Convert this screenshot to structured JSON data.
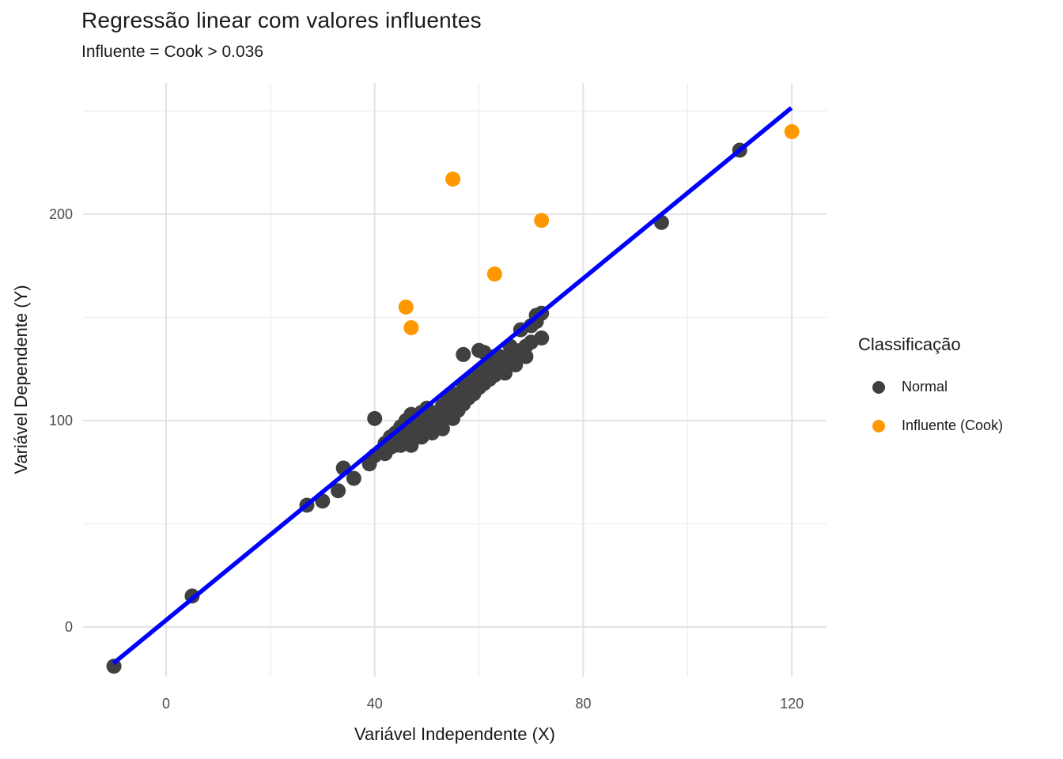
{
  "chart_data": {
    "type": "scatter",
    "title": "Regressão linear com valores influentes",
    "subtitle": "Influente = Cook > 0.036",
    "xlabel": "Variável Independente (X)",
    "ylabel": "Variável Dependente (Y)",
    "x_ticks": [
      0,
      40,
      80,
      120
    ],
    "y_ticks": [
      0,
      100,
      200
    ],
    "x_minor_ticks": [
      20,
      60,
      100
    ],
    "y_minor_ticks": [
      50,
      150,
      250
    ],
    "xlim": [
      -15.9,
      126.7
    ],
    "ylim": [
      -24.2,
      263.6
    ],
    "grid": true,
    "background": "#FFFFFF",
    "tick_label_color": "#4D4D4D",
    "legend": {
      "title": "Classificação",
      "position": "right",
      "entries": [
        {
          "label": "Normal",
          "color": "#404040"
        },
        {
          "label": "Influente (Cook)",
          "color": "#FF9800"
        }
      ]
    },
    "series": [
      {
        "name": "Normal",
        "color": "#404040",
        "point_radius": 9.5,
        "points": [
          [
            -10,
            -19
          ],
          [
            5,
            15
          ],
          [
            27,
            59
          ],
          [
            30,
            61
          ],
          [
            33,
            66
          ],
          [
            34,
            77
          ],
          [
            36,
            72
          ],
          [
            39,
            79
          ],
          [
            40,
            101
          ],
          [
            95,
            196
          ],
          [
            110,
            231
          ],
          [
            72,
            140
          ],
          [
            40,
            83
          ],
          [
            41,
            85
          ],
          [
            42,
            84
          ],
          [
            42,
            89
          ],
          [
            43,
            87
          ],
          [
            43,
            92
          ],
          [
            44,
            88
          ],
          [
            44,
            94
          ],
          [
            45,
            88
          ],
          [
            45,
            92
          ],
          [
            45,
            97
          ],
          [
            46,
            91
          ],
          [
            46,
            100
          ],
          [
            47,
            88
          ],
          [
            47,
            95
          ],
          [
            47,
            103
          ],
          [
            48,
            93
          ],
          [
            48,
            100
          ],
          [
            49,
            92
          ],
          [
            49,
            97
          ],
          [
            49,
            104
          ],
          [
            50,
            98
          ],
          [
            50,
            106
          ],
          [
            51,
            94
          ],
          [
            51,
            100
          ],
          [
            52,
            99
          ],
          [
            52,
            104
          ],
          [
            53,
            96
          ],
          [
            53,
            102
          ],
          [
            53,
            107
          ],
          [
            54,
            104
          ],
          [
            54,
            110
          ],
          [
            55,
            101
          ],
          [
            55,
            107
          ],
          [
            55,
            113
          ],
          [
            56,
            105
          ],
          [
            56,
            110
          ],
          [
            57,
            108
          ],
          [
            57,
            113
          ],
          [
            57,
            118
          ],
          [
            57,
            132
          ],
          [
            58,
            111
          ],
          [
            58,
            116
          ],
          [
            59,
            113
          ],
          [
            59,
            119
          ],
          [
            59,
            122
          ],
          [
            60,
            116
          ],
          [
            60,
            121
          ],
          [
            60,
            134
          ],
          [
            61,
            118
          ],
          [
            61,
            124
          ],
          [
            61,
            133
          ],
          [
            62,
            120
          ],
          [
            62,
            126
          ],
          [
            63,
            122
          ],
          [
            63,
            128
          ],
          [
            63,
            131
          ],
          [
            64,
            125
          ],
          [
            64,
            131
          ],
          [
            65,
            123
          ],
          [
            65,
            128
          ],
          [
            66,
            130
          ],
          [
            66,
            136
          ],
          [
            67,
            127
          ],
          [
            67,
            132
          ],
          [
            68,
            134
          ],
          [
            68,
            144
          ],
          [
            69,
            131
          ],
          [
            69,
            136
          ],
          [
            70,
            138
          ],
          [
            70,
            146
          ],
          [
            71,
            148
          ],
          [
            71,
            151
          ],
          [
            72,
            152
          ]
        ]
      },
      {
        "name": "Influente (Cook)",
        "color": "#FF9800",
        "point_radius": 9.5,
        "points": [
          [
            55,
            217
          ],
          [
            72,
            197
          ],
          [
            63,
            171
          ],
          [
            46,
            155
          ],
          [
            47,
            145
          ],
          [
            120,
            240
          ]
        ]
      }
    ],
    "regression_line": {
      "slope": 2.07,
      "intercept": 3.3,
      "x_start": -10.1,
      "x_end": 119.9,
      "color": "#0000FF",
      "width": 5.5
    }
  }
}
